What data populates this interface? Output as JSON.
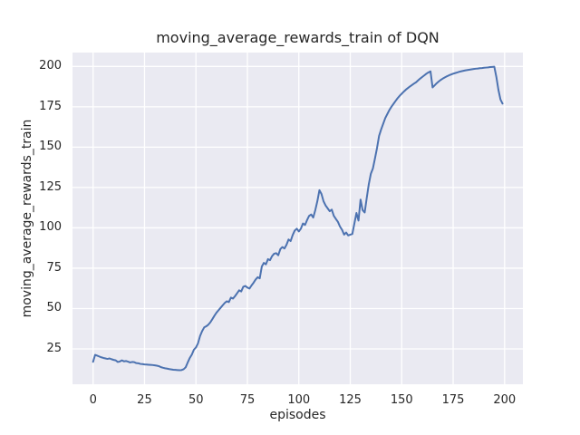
{
  "chart_data": {
    "type": "line",
    "title": "moving_average_rewards_train of DQN",
    "xlabel": "episodes",
    "ylabel": "moving_average_rewards_train",
    "grid": true,
    "legend_position": "none",
    "xticks": [
      0,
      25,
      50,
      75,
      100,
      125,
      150,
      175,
      200
    ],
    "yticks": [
      25,
      50,
      75,
      100,
      125,
      150,
      175,
      200
    ],
    "xlim": [
      -10,
      208.9
    ],
    "ylim": [
      3.1,
      208.6
    ],
    "x_start": 0,
    "x_step": 1,
    "series": [
      {
        "values": [
          17.0,
          21.3,
          20.8,
          20.3,
          19.8,
          19.4,
          19.1,
          18.8,
          19.1,
          18.6,
          18.2,
          17.9,
          16.9,
          17.2,
          17.9,
          17.3,
          17.5,
          17.1,
          16.6,
          16.9,
          16.8,
          16.2,
          16.1,
          15.7,
          15.6,
          15.4,
          15.3,
          15.2,
          15.1,
          15.0,
          14.8,
          14.6,
          14.3,
          13.7,
          13.3,
          13.0,
          12.8,
          12.5,
          12.3,
          12.1,
          12.0,
          11.9,
          11.8,
          11.9,
          12.4,
          13.6,
          16.6,
          19.4,
          21.5,
          24.5,
          25.9,
          28.5,
          33.0,
          36.0,
          38.3,
          39.0,
          40.0,
          41.5,
          43.5,
          45.6,
          47.5,
          49.0,
          50.5,
          52.0,
          53.5,
          54.5,
          54.0,
          56.8,
          56.2,
          57.7,
          59.5,
          61.3,
          60.6,
          63.5,
          64.0,
          63.0,
          62.4,
          64.3,
          66.0,
          68.0,
          69.4,
          68.7,
          76.0,
          78.3,
          77.4,
          80.6,
          80.0,
          82.5,
          84.0,
          84.3,
          83.0,
          86.8,
          88.1,
          87.2,
          89.5,
          92.8,
          91.8,
          95.5,
          98.3,
          99.5,
          97.8,
          99.5,
          102.7,
          101.8,
          104.8,
          107.4,
          108.3,
          106.4,
          111.0,
          116.5,
          123.3,
          121.0,
          116.5,
          113.9,
          112.1,
          110.3,
          111.3,
          107.4,
          105.5,
          103.7,
          100.8,
          98.8,
          95.8,
          97.1,
          95.3,
          95.8,
          96.2,
          102.7,
          109.2,
          104.5,
          117.5,
          111.0,
          109.5,
          118.5,
          127.0,
          133.5,
          136.8,
          143.0,
          149.5,
          157.0,
          161.0,
          164.5,
          168.0,
          170.5,
          173.0,
          175.0,
          176.8,
          178.6,
          180.3,
          181.8,
          183.1,
          184.4,
          185.6,
          186.6,
          187.6,
          188.5,
          189.4,
          190.2,
          191.4,
          192.5,
          193.5,
          194.5,
          195.5,
          196.3,
          196.9,
          187.0,
          188.3,
          189.6,
          190.7,
          191.7,
          192.5,
          193.2,
          193.9,
          194.5,
          195.0,
          195.5,
          195.9,
          196.3,
          196.7,
          197.0,
          197.3,
          197.6,
          197.8,
          198.0,
          198.2,
          198.4,
          198.6,
          198.7,
          198.9,
          199.0,
          199.2,
          199.3,
          199.4,
          199.6,
          199.7,
          199.8,
          193.5,
          185.5,
          179.5,
          177.0
        ]
      }
    ],
    "colors": {
      "line": "#4c72b0",
      "plot_bg": "#eaeaf2",
      "grid": "#ffffff",
      "text": "#262626",
      "figure_bg": "#ffffff"
    }
  }
}
